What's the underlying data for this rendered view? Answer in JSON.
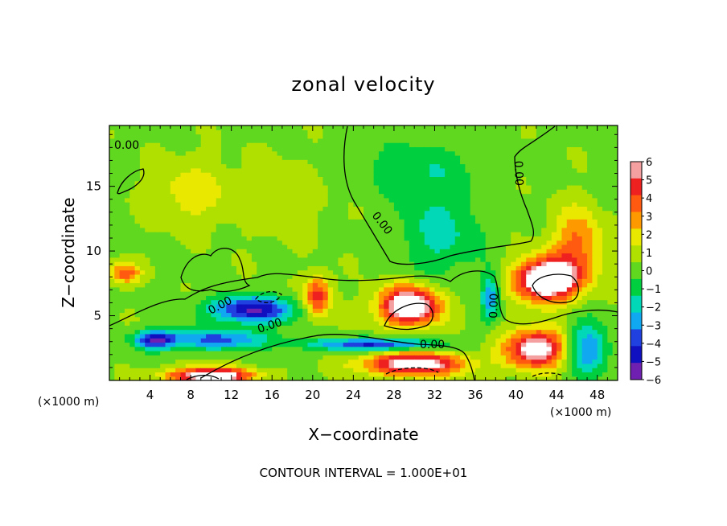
{
  "chart_data": {
    "type": "heatmap",
    "title": "zonal velocity",
    "xlabel": "X−coordinate",
    "ylabel": "Z−coordinate",
    "x_unit_left": "(×1000 m)",
    "x_unit_right": "(×1000 m)",
    "xlim": [
      0,
      50
    ],
    "ylim": [
      0,
      19.7
    ],
    "x_ticks": [
      4,
      8,
      12,
      16,
      20,
      24,
      28,
      32,
      36,
      40,
      44,
      48
    ],
    "y_ticks": [
      5,
      10,
      15
    ],
    "colorbar": {
      "range": [
        -6,
        6
      ],
      "labels": [
        "6",
        "5",
        "4",
        "3",
        "2",
        "1",
        "0",
        "−1",
        "−2",
        "−3",
        "−4",
        "−5",
        "−6"
      ],
      "colors": [
        "#f5a0a0",
        "#ee2020",
        "#ff5a10",
        "#ff9900",
        "#e8e800",
        "#b0e000",
        "#60d820",
        "#00d040",
        "#00d8b8",
        "#10a8f0",
        "#2040e0",
        "#1010c0",
        "#7020b0"
      ]
    },
    "contour_label": "0.00",
    "contour_interval_text": "CONTOUR INTERVAL = 1.000E+01",
    "features": [
      {
        "x": 43,
        "y": 7.8,
        "sx": 3.0,
        "sy": 1.6,
        "value": 9
      },
      {
        "x": 29.5,
        "y": 5.8,
        "sx": 3.0,
        "sy": 1.5,
        "value": 8
      },
      {
        "x": 20.5,
        "y": 6.5,
        "sx": 1.3,
        "sy": 1.5,
        "value": 5
      },
      {
        "x": 30,
        "y": 1.3,
        "sx": 5.0,
        "sy": 0.9,
        "value": 7
      },
      {
        "x": 26,
        "y": 2.8,
        "sx": 6.0,
        "sy": 0.5,
        "value": -5
      },
      {
        "x": 10,
        "y": 0.4,
        "sx": 4.0,
        "sy": 0.6,
        "value": 8
      },
      {
        "x": 4.5,
        "y": 3.2,
        "sx": 2.0,
        "sy": 0.7,
        "value": -5
      },
      {
        "x": 14,
        "y": 5.5,
        "sx": 4.0,
        "sy": 1.0,
        "value": -6
      },
      {
        "x": 10.5,
        "y": 3.2,
        "sx": 5.5,
        "sy": 0.8,
        "value": -4
      },
      {
        "x": 42,
        "y": 2.5,
        "sx": 3.0,
        "sy": 1.5,
        "value": 7
      },
      {
        "x": 47,
        "y": 2.5,
        "sx": 2.0,
        "sy": 2.0,
        "value": -4
      },
      {
        "x": 37.5,
        "y": 6.5,
        "sx": 0.9,
        "sy": 1.8,
        "value": -3.5
      },
      {
        "x": 1.5,
        "y": 8.3,
        "sx": 1.5,
        "sy": 0.8,
        "value": 4
      },
      {
        "x": 46,
        "y": 10.5,
        "sx": 2.5,
        "sy": 2.8,
        "value": 3.5
      },
      {
        "x": 32.5,
        "y": 11.5,
        "sx": 4.0,
        "sy": 3.5,
        "value": -2.2
      },
      {
        "x": 30,
        "y": 16.5,
        "sx": 6.0,
        "sy": 2.0,
        "value": -1.5
      },
      {
        "x": 8,
        "y": 14.5,
        "sx": 4.0,
        "sy": 2.5,
        "value": 1.8
      },
      {
        "x": 17,
        "y": 14,
        "sx": 4.0,
        "sy": 3.0,
        "value": 0.9
      }
    ]
  }
}
